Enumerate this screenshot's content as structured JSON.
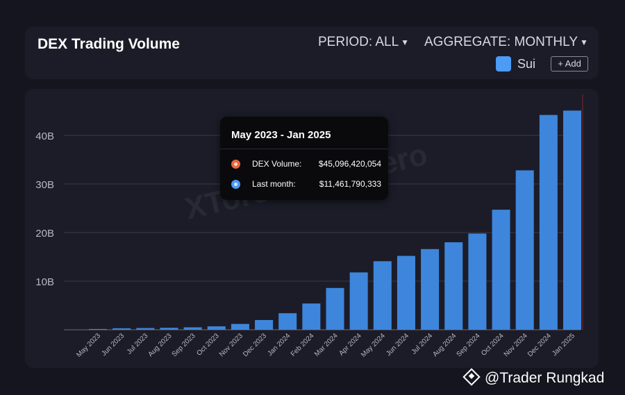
{
  "header": {
    "title": "DEX Trading Volume",
    "period_label": "PERIOD: ALL",
    "aggregate_label": "AGGREGATE: MONTHLY",
    "legend_label": "Sui",
    "legend_color": "#4c9bf5",
    "add_label": "+ Add"
  },
  "tooltip": {
    "title": "May 2023 - Jan 2025",
    "rows": [
      {
        "label": "DEX Volume:",
        "value": "$45,096,420,054",
        "color": "#e8663a"
      },
      {
        "label": "Last month:",
        "value": "$11,461,790,333",
        "color": "#4c9bf5"
      }
    ]
  },
  "watermark": "XTorero_Romero",
  "credit": "@Trader Rungkad",
  "chart_data": {
    "type": "bar",
    "categories": [
      "May 2023",
      "Jun 2023",
      "Jul 2023",
      "Aug 2023",
      "Sep 2023",
      "Oct 2023",
      "Nov 2023",
      "Dec 2023",
      "Jan 2024",
      "Feb 2024",
      "Mar 2024",
      "Apr 2024",
      "May 2024",
      "Jun 2024",
      "Jul 2024",
      "Aug 2024",
      "Sep 2024",
      "Oct 2024",
      "Nov 2024",
      "Dec 2024",
      "Jan 2025"
    ],
    "values": [
      0.15,
      0.3,
      0.35,
      0.4,
      0.5,
      0.7,
      1.2,
      2.0,
      3.4,
      5.4,
      8.6,
      11.8,
      14.1,
      15.2,
      16.6,
      18.0,
      19.8,
      24.7,
      32.8,
      44.2,
      45.1
    ],
    "yticks": [
      "10B",
      "20B",
      "30B",
      "40B"
    ],
    "ytick_values": [
      10,
      20,
      30,
      40
    ],
    "ylim": [
      0,
      50
    ],
    "bar_color": "#3d86dc",
    "grid": true
  }
}
